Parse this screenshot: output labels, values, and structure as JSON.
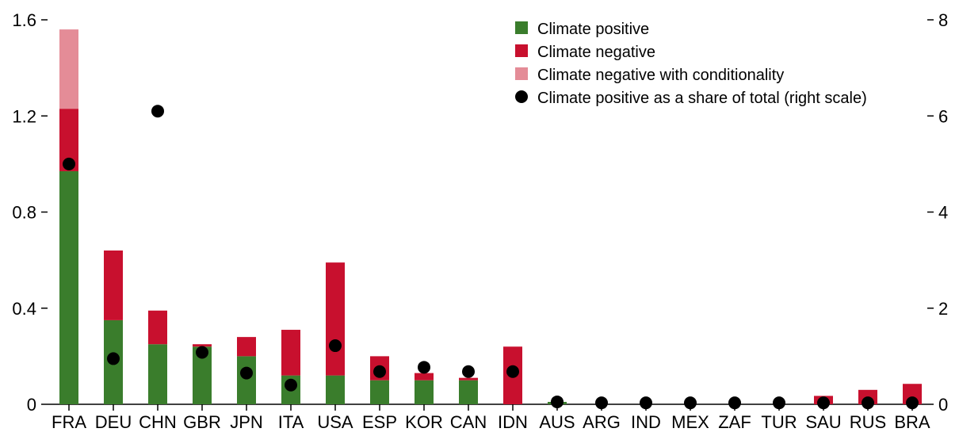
{
  "chart_data": {
    "type": "bar",
    "stacked": true,
    "categories": [
      "FRA",
      "DEU",
      "CHN",
      "GBR",
      "JPN",
      "ITA",
      "USA",
      "ESP",
      "KOR",
      "CAN",
      "IDN",
      "AUS",
      "ARG",
      "IND",
      "MEX",
      "ZAF",
      "TUR",
      "SAU",
      "RUS",
      "BRA"
    ],
    "series": [
      {
        "name": "Climate positive",
        "kind": "bar",
        "axis": "left",
        "color": "#3a7d2c",
        "values": [
          0.97,
          0.35,
          0.25,
          0.24,
          0.2,
          0.12,
          0.12,
          0.1,
          0.1,
          0.1,
          0.0,
          0.01,
          0,
          0,
          0,
          0,
          0,
          0,
          0,
          0
        ]
      },
      {
        "name": "Climate negative",
        "kind": "bar",
        "axis": "left",
        "color": "#c8102e",
        "values": [
          0.26,
          0.29,
          0.14,
          0.01,
          0.08,
          0.19,
          0.47,
          0.1,
          0.03,
          0.01,
          0.24,
          0,
          0,
          0,
          0,
          0,
          0,
          0.035,
          0.06,
          0.085
        ]
      },
      {
        "name": "Climate negative with conditionality",
        "kind": "bar",
        "axis": "left",
        "color": "#e48c97",
        "values": [
          0.33,
          0,
          0,
          0,
          0,
          0,
          0,
          0,
          0,
          0,
          0,
          0,
          0,
          0,
          0,
          0,
          0,
          0,
          0,
          0
        ]
      },
      {
        "name": "Climate positive as a share of total (right scale)",
        "kind": "dot",
        "axis": "right",
        "color": "#000000",
        "values": [
          5.0,
          0.95,
          6.1,
          1.08,
          0.65,
          0.4,
          1.22,
          0.68,
          0.77,
          0.68,
          0.68,
          0.05,
          0.03,
          0.03,
          0.03,
          0.03,
          0.03,
          0.03,
          0.03,
          0.03
        ]
      }
    ],
    "y_left": {
      "ticks": [
        "0",
        "0.4",
        "0.8",
        "1.2",
        "1.6"
      ],
      "tick_values": [
        0,
        0.4,
        0.8,
        1.2,
        1.6
      ],
      "ylim": [
        0,
        1.6
      ]
    },
    "y_right": {
      "ticks": [
        "0",
        "2",
        "4",
        "6",
        "8"
      ],
      "tick_values": [
        0,
        2,
        4,
        6,
        8
      ],
      "ylim": [
        0,
        8
      ]
    },
    "title": "",
    "xlabel": "",
    "ylabel": "",
    "grid": false,
    "legend_position": "top-right"
  }
}
